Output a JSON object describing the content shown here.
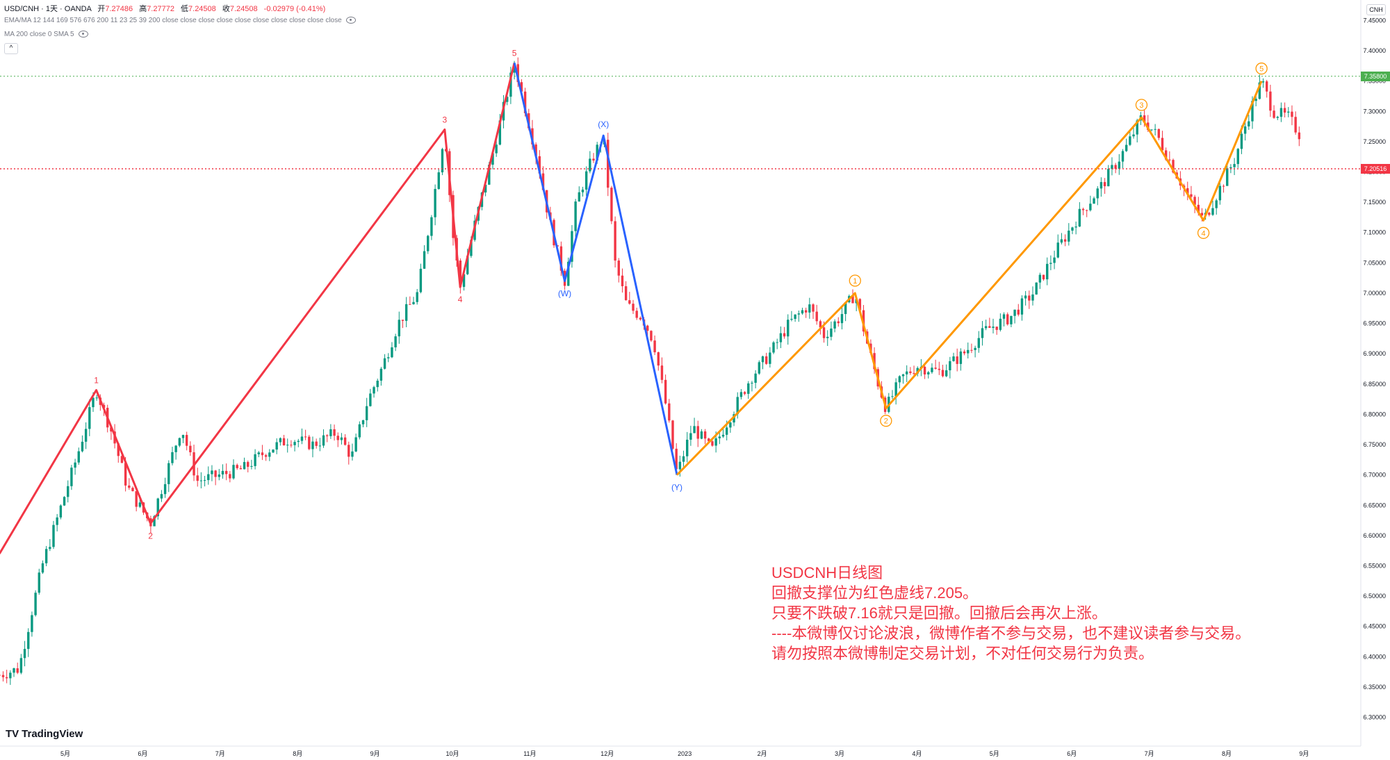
{
  "header": {
    "symbol": "USD/CNH · 1天 · OANDA",
    "open_label": "开",
    "open": "7.27486",
    "high_label": "高",
    "high": "7.27772",
    "low_label": "低",
    "low": "7.24508",
    "close_label": "收",
    "close": "7.24508",
    "change": "-0.02979 (-0.41%)",
    "indicator1": "EMA/MA 12 144 169 576 676 200 11 23 25 39 200 close close close close close close close close close close",
    "indicator2": "MA 200 close 0 SMA 5",
    "collapse_icon": "^"
  },
  "currency_tag": "CNH",
  "brand": "TradingView",
  "note_lines": [
    "USDCNH日线图",
    "回撤支撑位为红色虚线7.205。",
    "只要不跌破7.16就只是回撤。回撤后会再次上涨。",
    "----本微博仅讨论波浪，微博作者不参与交易，也不建议读者参与交易。",
    "请勿按照本微博制定交易计划，不对任何交易行为负责。"
  ],
  "colors": {
    "up": "#089981",
    "down": "#f23645",
    "wave_red": "#f23645",
    "wave_blue": "#2962ff",
    "wave_orange": "#ff9800",
    "green_line": "#4caf50",
    "red_line": "#f23645"
  },
  "chart_data": {
    "type": "candlestick",
    "symbol": "USD/CNH",
    "timeframe": "1D",
    "y_range": [
      6.28,
      7.47
    ],
    "y_ticks": [
      "7.45000",
      "7.40000",
      "7.35000",
      "7.30000",
      "7.25000",
      "7.20000",
      "7.15000",
      "7.10000",
      "7.05000",
      "7.00000",
      "6.95000",
      "6.90000",
      "6.85000",
      "6.80000",
      "6.75000",
      "6.70000",
      "6.65000",
      "6.60000",
      "6.55000",
      "6.50000",
      "6.45000",
      "6.40000",
      "6.35000",
      "6.30000"
    ],
    "x_ticks": [
      "5月",
      "6月",
      "7月",
      "8月",
      "9月",
      "10月",
      "11月",
      "12月",
      "2023",
      "2月",
      "3月",
      "4月",
      "5月",
      "6月",
      "7月",
      "8月",
      "9月"
    ],
    "x_tick_positions": [
      0.0,
      1.0,
      2.0,
      3.0,
      4.0,
      5.0,
      6.0,
      7.0,
      8.0,
      9.0,
      10.0,
      11.0,
      12.0,
      13.0,
      14.0,
      15.0,
      16.0
    ],
    "horizontal_levels": [
      {
        "value": 7.358,
        "label": "7.35800",
        "color": "#4caf50",
        "style": "dotted"
      },
      {
        "value": 7.20516,
        "label": "7.20516",
        "color": "#f23645",
        "style": "dotted"
      }
    ],
    "wave_red": {
      "points": [
        [
          -0.85,
          6.57
        ],
        [
          0.4,
          6.84
        ],
        [
          1.1,
          6.62
        ],
        [
          4.9,
          7.27
        ],
        [
          5.1,
          7.01
        ],
        [
          5.8,
          7.38
        ]
      ],
      "labels": [
        "1",
        "2",
        "3",
        "4",
        "5"
      ]
    },
    "wave_blue": {
      "points": [
        [
          5.8,
          7.38
        ],
        [
          6.45,
          7.02
        ],
        [
          6.95,
          7.26
        ],
        [
          7.9,
          6.7
        ]
      ],
      "labels": [
        "(W)",
        "(X)",
        "(Y)"
      ]
    },
    "wave_orange": {
      "points": [
        [
          7.9,
          6.7
        ],
        [
          10.2,
          7.0
        ],
        [
          10.6,
          6.81
        ],
        [
          13.9,
          7.29
        ],
        [
          14.7,
          7.12
        ],
        [
          15.45,
          7.35
        ]
      ],
      "labels": [
        "1",
        "2",
        "3",
        "4",
        "5"
      ]
    },
    "price_path": [
      [
        -0.85,
        6.37
      ],
      [
        -0.6,
        6.38
      ],
      [
        -0.3,
        6.55
      ],
      [
        -0.1,
        6.63
      ],
      [
        0.15,
        6.73
      ],
      [
        0.4,
        6.84
      ],
      [
        0.6,
        6.77
      ],
      [
        0.8,
        6.68
      ],
      [
        1.1,
        6.62
      ],
      [
        1.3,
        6.7
      ],
      [
        1.5,
        6.78
      ],
      [
        1.7,
        6.69
      ],
      [
        2.0,
        6.7
      ],
      [
        2.3,
        6.71
      ],
      [
        2.6,
        6.74
      ],
      [
        2.9,
        6.76
      ],
      [
        3.2,
        6.75
      ],
      [
        3.5,
        6.77
      ],
      [
        3.7,
        6.73
      ],
      [
        3.9,
        6.82
      ],
      [
        4.1,
        6.88
      ],
      [
        4.3,
        6.95
      ],
      [
        4.55,
        7.0
      ],
      [
        4.75,
        7.15
      ],
      [
        4.9,
        7.27
      ],
      [
        5.0,
        7.1
      ],
      [
        5.1,
        7.01
      ],
      [
        5.3,
        7.12
      ],
      [
        5.5,
        7.22
      ],
      [
        5.65,
        7.3
      ],
      [
        5.8,
        7.38
      ],
      [
        5.95,
        7.3
      ],
      [
        6.1,
        7.22
      ],
      [
        6.25,
        7.12
      ],
      [
        6.45,
        7.02
      ],
      [
        6.6,
        7.15
      ],
      [
        6.8,
        7.22
      ],
      [
        6.95,
        7.26
      ],
      [
        7.1,
        7.05
      ],
      [
        7.25,
        6.98
      ],
      [
        7.45,
        6.96
      ],
      [
        7.6,
        6.92
      ],
      [
        7.75,
        6.82
      ],
      [
        7.9,
        6.7
      ],
      [
        8.1,
        6.78
      ],
      [
        8.35,
        6.74
      ],
      [
        8.6,
        6.8
      ],
      [
        8.85,
        6.86
      ],
      [
        9.1,
        6.9
      ],
      [
        9.35,
        6.95
      ],
      [
        9.6,
        6.98
      ],
      [
        9.8,
        6.93
      ],
      [
        10.0,
        6.96
      ],
      [
        10.2,
        7.0
      ],
      [
        10.35,
        6.92
      ],
      [
        10.5,
        6.85
      ],
      [
        10.6,
        6.81
      ],
      [
        10.8,
        6.86
      ],
      [
        11.0,
        6.88
      ],
      [
        11.3,
        6.87
      ],
      [
        11.6,
        6.9
      ],
      [
        11.9,
        6.94
      ],
      [
        12.2,
        6.96
      ],
      [
        12.5,
        7.0
      ],
      [
        12.8,
        7.07
      ],
      [
        13.1,
        7.13
      ],
      [
        13.4,
        7.18
      ],
      [
        13.7,
        7.24
      ],
      [
        13.9,
        7.29
      ],
      [
        14.1,
        7.26
      ],
      [
        14.3,
        7.21
      ],
      [
        14.5,
        7.16
      ],
      [
        14.7,
        7.12
      ],
      [
        14.9,
        7.17
      ],
      [
        15.1,
        7.22
      ],
      [
        15.3,
        7.3
      ],
      [
        15.45,
        7.35
      ],
      [
        15.6,
        7.3
      ],
      [
        15.8,
        7.29
      ],
      [
        15.95,
        7.26
      ]
    ]
  }
}
